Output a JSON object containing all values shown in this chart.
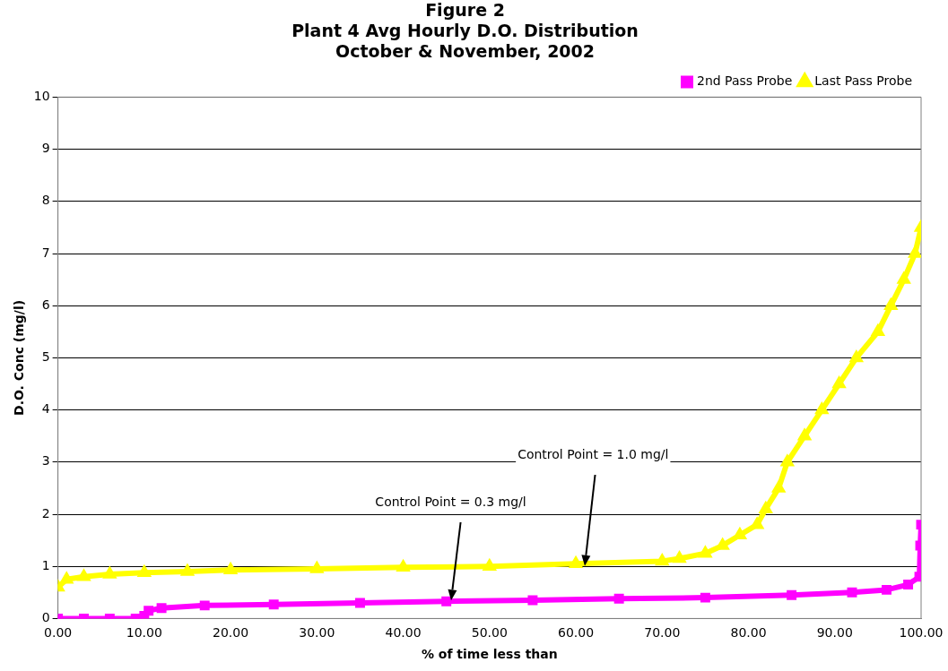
{
  "chart_data": {
    "type": "line",
    "title": "Figure 2\nPlant 4 Avg Hourly D.O. Distribution\nOctober & November, 2002",
    "xlabel": "% of time less than",
    "ylabel": "D.O. Conc (mg/l)",
    "xlim": [
      0,
      100
    ],
    "xticks": [
      {
        "value": 0,
        "label": "0.00"
      },
      {
        "value": 10,
        "label": "10.00"
      },
      {
        "value": 20,
        "label": "20.00"
      },
      {
        "value": 30,
        "label": "30.00"
      },
      {
        "value": 40,
        "label": "40.00"
      },
      {
        "value": 50,
        "label": "50.00"
      },
      {
        "value": 60,
        "label": "60.00"
      },
      {
        "value": 70,
        "label": "70.00"
      },
      {
        "value": 80,
        "label": "80.00"
      },
      {
        "value": 90,
        "label": "90.00"
      },
      {
        "value": 100,
        "label": "100.00"
      }
    ],
    "ylim": [
      0,
      10
    ],
    "yticks": [
      0,
      1,
      2,
      3,
      4,
      5,
      6,
      7,
      8,
      9,
      10
    ],
    "grid": "y",
    "legend": "top right",
    "line_style": "solid",
    "series": [
      {
        "name": "2nd Pass Probe",
        "color": "#ff00ff",
        "marker": "square",
        "x": [
          0,
          3,
          6,
          9,
          10,
          10.5,
          12,
          17,
          25,
          35,
          45,
          55,
          65,
          75,
          85,
          92,
          96,
          98.5,
          99.8,
          99.9,
          100
        ],
        "values": [
          0,
          0,
          0,
          0,
          0.05,
          0.15,
          0.2,
          0.25,
          0.27,
          0.3,
          0.33,
          0.35,
          0.38,
          0.4,
          0.45,
          0.5,
          0.55,
          0.65,
          0.8,
          1.4,
          1.8
        ]
      },
      {
        "name": "Last Pass Probe",
        "color": "#ffff00",
        "marker": "triangle",
        "x": [
          0,
          1,
          3,
          6,
          10,
          15,
          20,
          30,
          40,
          50,
          60,
          70,
          72,
          75,
          77,
          79,
          81,
          82,
          83.5,
          84.5,
          86.5,
          88.5,
          90.5,
          92.5,
          95,
          96.5,
          98,
          99.3,
          100
        ],
        "values": [
          0.6,
          0.75,
          0.8,
          0.85,
          0.88,
          0.9,
          0.93,
          0.95,
          0.98,
          1.0,
          1.05,
          1.1,
          1.15,
          1.25,
          1.4,
          1.6,
          1.8,
          2.1,
          2.5,
          3.0,
          3.5,
          4.0,
          4.5,
          5.0,
          5.5,
          6.0,
          6.5,
          7.0,
          7.5
        ]
      }
    ],
    "annotations": [
      "Control Point = 1.0 mg/l",
      "Control Point = 0.3 mg/l"
    ]
  }
}
